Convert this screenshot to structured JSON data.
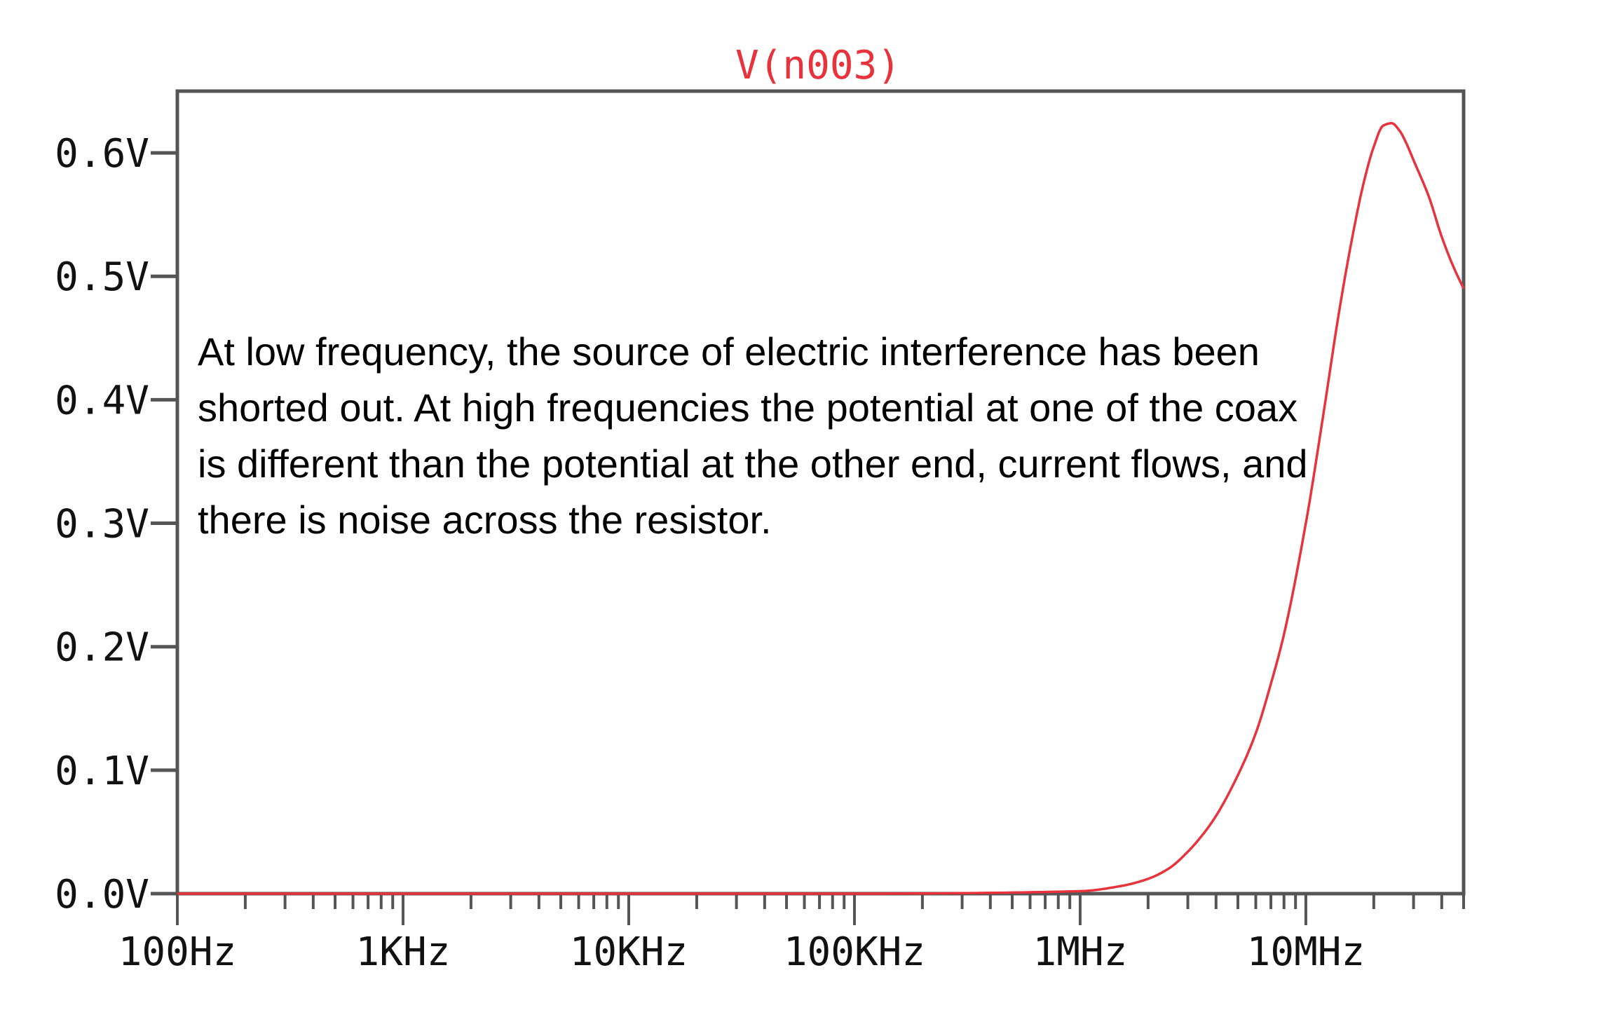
{
  "chart_data": {
    "type": "line",
    "title": "V(n003)",
    "xlabel": "",
    "ylabel": "",
    "x_scale": "log",
    "xlim": [
      "100Hz",
      "50MHz"
    ],
    "ylim": [
      0.0,
      0.65
    ],
    "grid": false,
    "x_ticks": [
      "100Hz",
      "1KHz",
      "10KHz",
      "100KHz",
      "1MHz",
      "10MHz"
    ],
    "y_ticks": [
      "0.0V",
      "0.1V",
      "0.2V",
      "0.3V",
      "0.4V",
      "0.5V",
      "0.6V"
    ],
    "series": [
      {
        "name": "V(n003)",
        "color": "#e8323c",
        "x": [
          "100Hz",
          "1KHz",
          "10KHz",
          "100KHz",
          "1MHz",
          "1.5MHz",
          "2MHz",
          "2.5MHz",
          "3MHz",
          "3.5MHz",
          "4MHz",
          "5MHz",
          "6MHz",
          "7MHz",
          "8MHz",
          "10MHz",
          "12MHz",
          "14MHz",
          "16MHz",
          "18MHz",
          "20MHz",
          "22MHz",
          "24MHz",
          "26MHz",
          "28MHz",
          "30MHz",
          "35MHz",
          "40MHz",
          "45MHz",
          "50MHz"
        ],
        "y": [
          0.0,
          0.0,
          0.0,
          0.0,
          0.002,
          0.006,
          0.012,
          0.021,
          0.034,
          0.048,
          0.063,
          0.096,
          0.13,
          0.17,
          0.21,
          0.3,
          0.39,
          0.47,
          0.53,
          0.575,
          0.605,
          0.622,
          0.624,
          0.618,
          0.607,
          0.594,
          0.565,
          0.532,
          0.508,
          0.49
        ]
      }
    ],
    "annotations": [
      "At low frequency, the source of electric interference has been shorted out. At high frequencies the potential at one of the coax is different than the potential at the other end, current flows, and there is noise across the resistor."
    ]
  }
}
